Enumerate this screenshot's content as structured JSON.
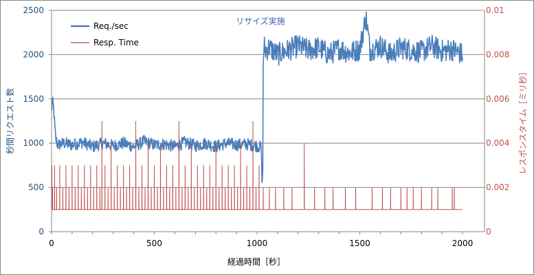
{
  "chart_data": {
    "type": "line",
    "title": "",
    "annotation": "リサイズ実施",
    "xlabel": "経過時間［秒］",
    "ylabel_left": "秒間リクエスト数",
    "ylabel_right": "レスポンスタイム［ミリ秒］",
    "xlim": [
      0,
      2000
    ],
    "ylim_left": [
      0,
      2500
    ],
    "ylim_right": [
      0,
      0.01
    ],
    "x_ticks": [
      "0",
      "500",
      "1000",
      "1500",
      "2000"
    ],
    "y_left_ticks": [
      "0",
      "500",
      "1000",
      "1500",
      "2000",
      "2500"
    ],
    "y_right_ticks": [
      "0",
      "0.002",
      "0.004",
      "0.006",
      "0.008",
      "0.01"
    ],
    "grid": "horizontal major lines",
    "legend_position": "top-left",
    "colors": {
      "req": "#4a7ebb",
      "resp": "#be4b48",
      "annotation": "#3b5eac"
    },
    "series": [
      {
        "name": "Req./sec",
        "axis": "left",
        "color": "#4a7ebb",
        "x": [
          0,
          3,
          6,
          10,
          14,
          20,
          30,
          60,
          100,
          150,
          200,
          250,
          300,
          350,
          400,
          450,
          500,
          550,
          600,
          650,
          700,
          750,
          800,
          850,
          900,
          950,
          1000,
          1020,
          1025,
          1028,
          1030,
          1035,
          1040,
          1060,
          1100,
          1150,
          1200,
          1250,
          1300,
          1350,
          1400,
          1450,
          1500,
          1530,
          1550,
          1600,
          1650,
          1700,
          1750,
          1800,
          1850,
          1900,
          1950,
          2000
        ],
        "values": [
          1350,
          1450,
          1460,
          1400,
          1250,
          1050,
          980,
          1000,
          980,
          1010,
          960,
          1000,
          970,
          1000,
          960,
          1020,
          980,
          990,
          960,
          1010,
          970,
          1000,
          960,
          1000,
          980,
          990,
          970,
          950,
          530,
          700,
          1900,
          2100,
          2050,
          2080,
          2000,
          2050,
          2100,
          2050,
          2080,
          2000,
          2070,
          2020,
          2060,
          2430,
          2050,
          2100,
          2000,
          2080,
          2050,
          2030,
          2100,
          2040,
          2060,
          2000
        ]
      },
      {
        "name": "Resp. Time",
        "axis": "right",
        "color": "#be4b48",
        "baseline": 0.001,
        "spikes": [
          {
            "x": 2,
            "y": 0.003
          },
          {
            "x": 5,
            "y": 0.002
          },
          {
            "x": 15,
            "y": 0.003
          },
          {
            "x": 25,
            "y": 0.002
          },
          {
            "x": 40,
            "y": 0.003
          },
          {
            "x": 55,
            "y": 0.002
          },
          {
            "x": 70,
            "y": 0.003
          },
          {
            "x": 85,
            "y": 0.002
          },
          {
            "x": 100,
            "y": 0.003
          },
          {
            "x": 115,
            "y": 0.002
          },
          {
            "x": 130,
            "y": 0.003
          },
          {
            "x": 145,
            "y": 0.002
          },
          {
            "x": 160,
            "y": 0.003
          },
          {
            "x": 175,
            "y": 0.002
          },
          {
            "x": 190,
            "y": 0.003
          },
          {
            "x": 205,
            "y": 0.002
          },
          {
            "x": 220,
            "y": 0.003
          },
          {
            "x": 235,
            "y": 0.002
          },
          {
            "x": 245,
            "y": 0.005
          },
          {
            "x": 260,
            "y": 0.003
          },
          {
            "x": 275,
            "y": 0.002
          },
          {
            "x": 290,
            "y": 0.004
          },
          {
            "x": 305,
            "y": 0.002
          },
          {
            "x": 320,
            "y": 0.003
          },
          {
            "x": 335,
            "y": 0.002
          },
          {
            "x": 350,
            "y": 0.003
          },
          {
            "x": 365,
            "y": 0.002
          },
          {
            "x": 380,
            "y": 0.003
          },
          {
            "x": 395,
            "y": 0.002
          },
          {
            "x": 410,
            "y": 0.005
          },
          {
            "x": 425,
            "y": 0.002
          },
          {
            "x": 440,
            "y": 0.003
          },
          {
            "x": 455,
            "y": 0.002
          },
          {
            "x": 470,
            "y": 0.004
          },
          {
            "x": 485,
            "y": 0.002
          },
          {
            "x": 500,
            "y": 0.003
          },
          {
            "x": 515,
            "y": 0.002
          },
          {
            "x": 530,
            "y": 0.004
          },
          {
            "x": 545,
            "y": 0.002
          },
          {
            "x": 560,
            "y": 0.003
          },
          {
            "x": 575,
            "y": 0.002
          },
          {
            "x": 590,
            "y": 0.003
          },
          {
            "x": 605,
            "y": 0.002
          },
          {
            "x": 620,
            "y": 0.005
          },
          {
            "x": 635,
            "y": 0.002
          },
          {
            "x": 650,
            "y": 0.003
          },
          {
            "x": 665,
            "y": 0.002
          },
          {
            "x": 680,
            "y": 0.004
          },
          {
            "x": 695,
            "y": 0.002
          },
          {
            "x": 710,
            "y": 0.003
          },
          {
            "x": 725,
            "y": 0.002
          },
          {
            "x": 740,
            "y": 0.003
          },
          {
            "x": 755,
            "y": 0.002
          },
          {
            "x": 770,
            "y": 0.003
          },
          {
            "x": 785,
            "y": 0.002
          },
          {
            "x": 800,
            "y": 0.004
          },
          {
            "x": 815,
            "y": 0.002
          },
          {
            "x": 830,
            "y": 0.003
          },
          {
            "x": 845,
            "y": 0.002
          },
          {
            "x": 860,
            "y": 0.003
          },
          {
            "x": 875,
            "y": 0.002
          },
          {
            "x": 890,
            "y": 0.003
          },
          {
            "x": 905,
            "y": 0.002
          },
          {
            "x": 920,
            "y": 0.004
          },
          {
            "x": 935,
            "y": 0.002
          },
          {
            "x": 950,
            "y": 0.003
          },
          {
            "x": 965,
            "y": 0.002
          },
          {
            "x": 980,
            "y": 0.005
          },
          {
            "x": 995,
            "y": 0.002
          },
          {
            "x": 1010,
            "y": 0.003
          },
          {
            "x": 1030,
            "y": 0.002
          },
          {
            "x": 1060,
            "y": 0.002
          },
          {
            "x": 1090,
            "y": 0.002
          },
          {
            "x": 1130,
            "y": 0.002
          },
          {
            "x": 1170,
            "y": 0.002
          },
          {
            "x": 1230,
            "y": 0.004
          },
          {
            "x": 1280,
            "y": 0.002
          },
          {
            "x": 1330,
            "y": 0.002
          },
          {
            "x": 1370,
            "y": 0.002
          },
          {
            "x": 1430,
            "y": 0.002
          },
          {
            "x": 1480,
            "y": 0.002
          },
          {
            "x": 1560,
            "y": 0.002
          },
          {
            "x": 1610,
            "y": 0.002
          },
          {
            "x": 1650,
            "y": 0.002
          },
          {
            "x": 1700,
            "y": 0.002
          },
          {
            "x": 1730,
            "y": 0.002
          },
          {
            "x": 1760,
            "y": 0.002
          },
          {
            "x": 1800,
            "y": 0.002
          },
          {
            "x": 1850,
            "y": 0.002
          },
          {
            "x": 1880,
            "y": 0.002
          },
          {
            "x": 1950,
            "y": 0.002
          },
          {
            "x": 1960,
            "y": 0.002
          }
        ]
      }
    ]
  }
}
